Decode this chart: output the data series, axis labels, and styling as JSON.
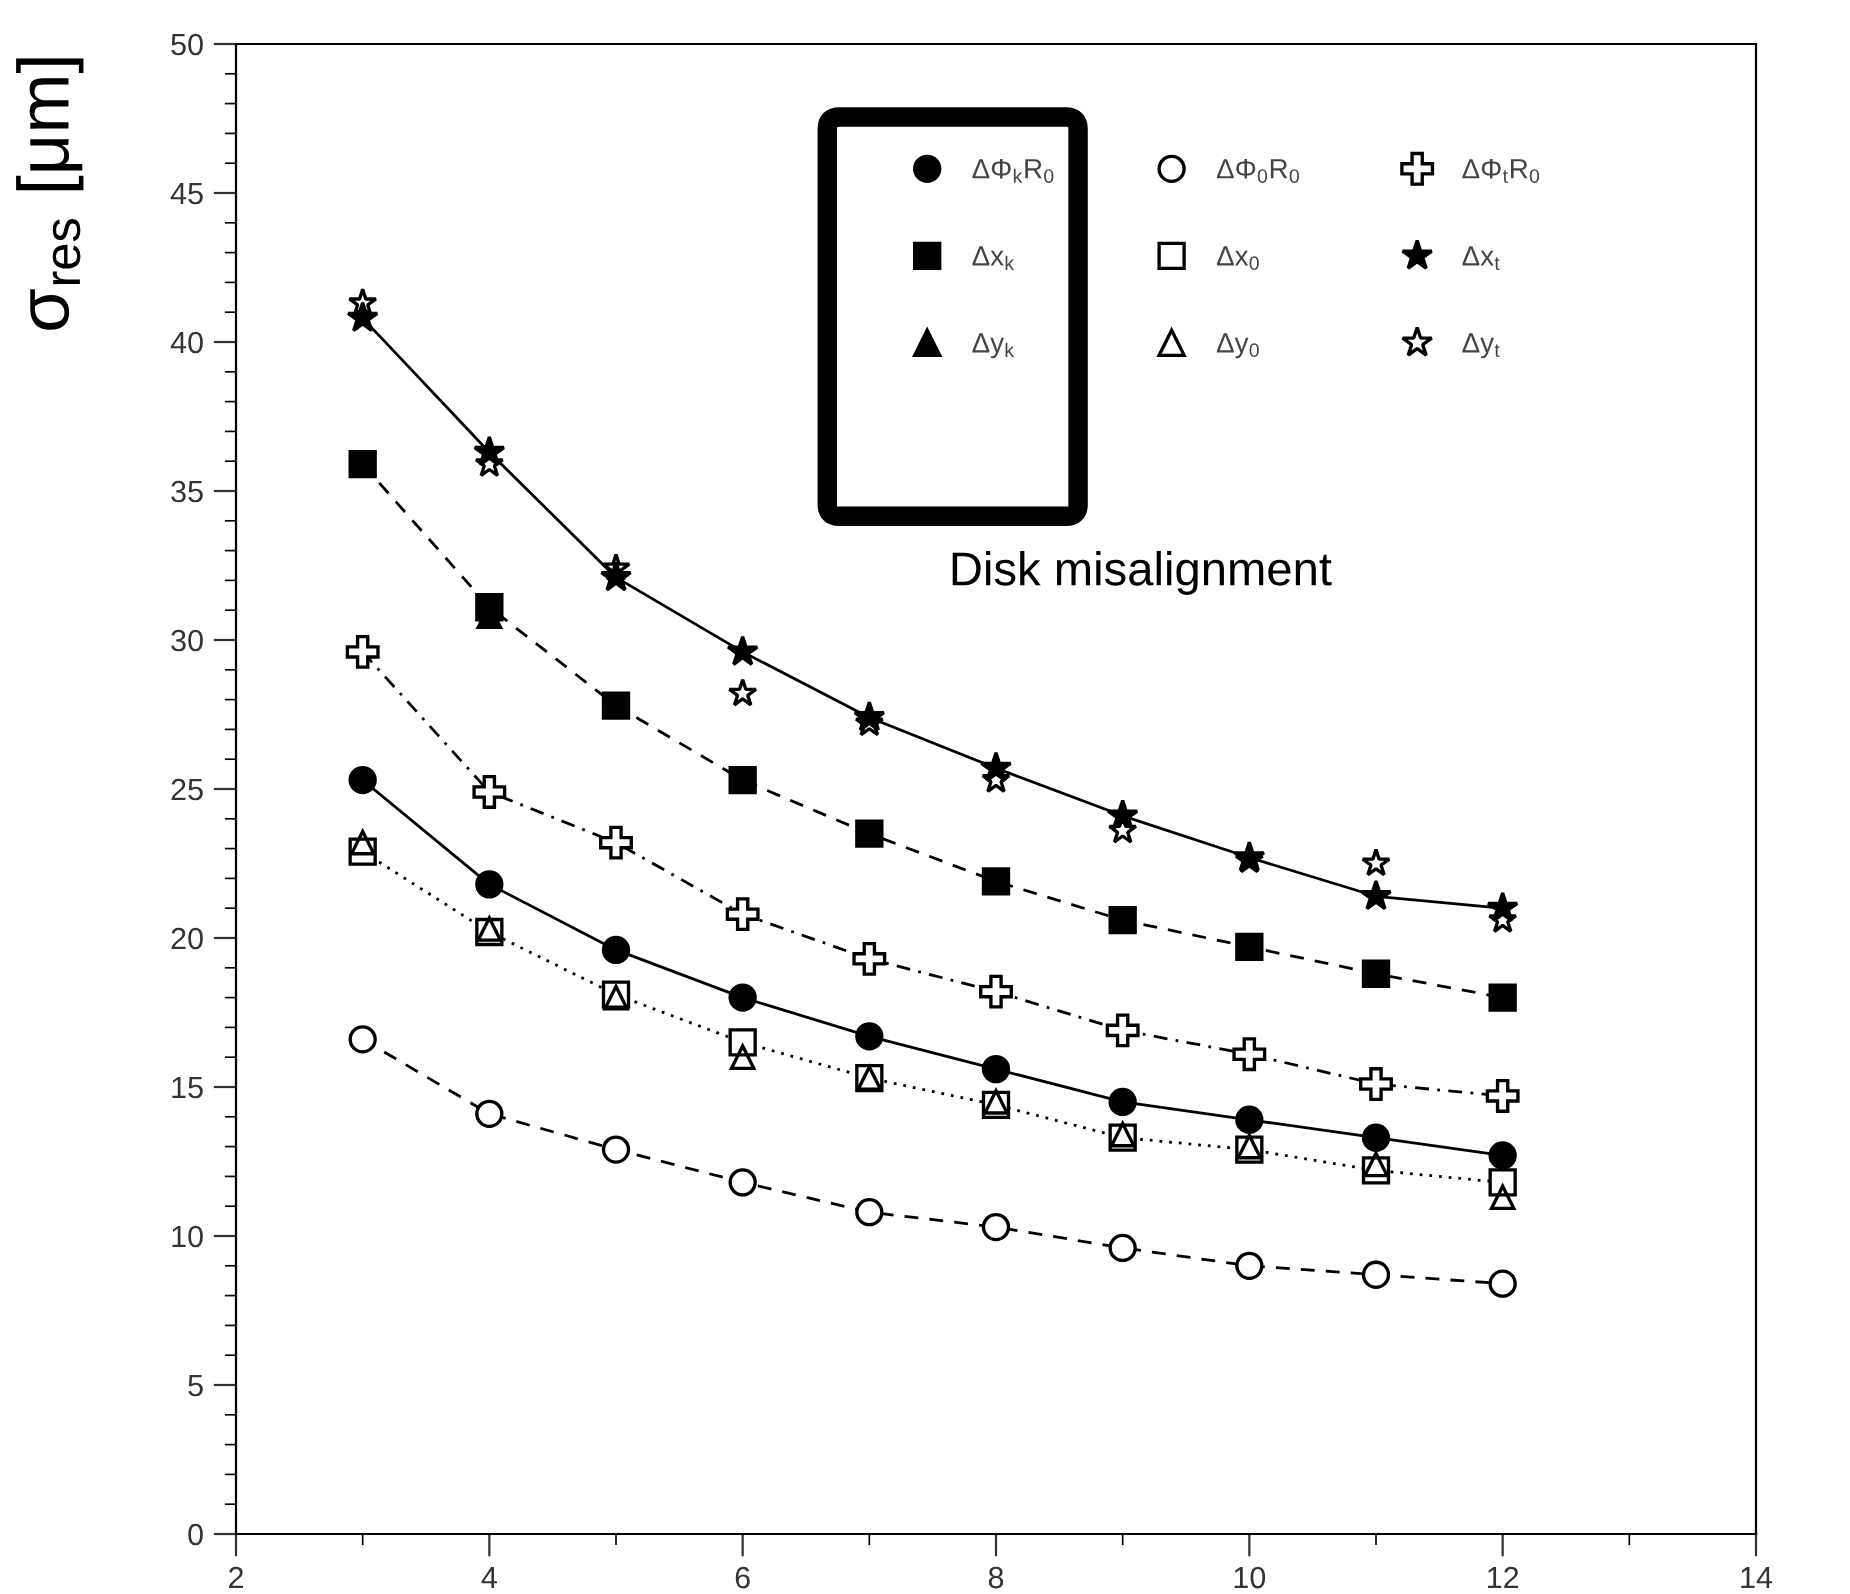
{
  "chart_data": {
    "type": "scatter",
    "ylabel": "σ$_{res}$ [μm]",
    "x": [
      3,
      4,
      5,
      6,
      7,
      8,
      9,
      10,
      11,
      12
    ],
    "xlim": [
      2,
      14
    ],
    "xticks": [
      2,
      4,
      6,
      8,
      10,
      12,
      14
    ],
    "ylim": [
      0,
      50
    ],
    "yticks": [
      0,
      5,
      10,
      15,
      20,
      25,
      30,
      35,
      40,
      45,
      50
    ],
    "grid": false,
    "legend": "top right",
    "annotations": [
      "Disk misalignment"
    ],
    "series": [
      {
        "name": "ΔΦ$_{k}$R$_{0}$",
        "type": "line",
        "color": "#000000",
        "marker": "circle",
        "line_style": "solid",
        "values": [
          25.3,
          21.8,
          19.6,
          18.0,
          16.7,
          15.6,
          14.5,
          13.9,
          13.3,
          12.7
        ]
      },
      {
        "name": "Δx$_{k}$",
        "type": "line",
        "color": "#000000",
        "marker": "square",
        "line_style": "dashed",
        "values": [
          35.9,
          31.1,
          27.8,
          25.3,
          23.5,
          21.9,
          20.6,
          19.7,
          18.8,
          18.0
        ]
      },
      {
        "name": "Δy$_{k}$",
        "color": "#000000",
        "marker": "triangle",
        "line_style": "none",
        "values": [
          null,
          30.8,
          null,
          null,
          null,
          null,
          null,
          null,
          null,
          null
        ]
      },
      {
        "name": "ΔΦ$_{0}$R$_{0}$",
        "type": "line",
        "color": "#000000",
        "marker": "circle-open",
        "line_style": "dashed",
        "values": [
          16.6,
          14.1,
          12.9,
          11.8,
          10.8,
          10.3,
          9.6,
          9.0,
          8.7,
          8.4
        ]
      },
      {
        "name": "Δx$_{0}$",
        "type": "line",
        "color": "#000000",
        "marker": "square-open",
        "line_style": "dotted",
        "values": [
          22.9,
          20.2,
          18.1,
          16.5,
          15.3,
          14.4,
          13.3,
          12.9,
          12.2,
          11.8
        ]
      },
      {
        "name": "Δy$_{0}$",
        "color": "#000000",
        "marker": "triangle-open",
        "line_style": "none",
        "values": [
          23.2,
          20.3,
          18.0,
          16.0,
          15.3,
          14.5,
          13.4,
          13.0,
          12.4,
          11.3
        ]
      },
      {
        "name": "ΔΦ$_{t}$R$_{0}$",
        "type": "line",
        "color": "#000000",
        "marker": "cross-open",
        "line_style": "dashdot",
        "values": [
          29.6,
          24.9,
          23.2,
          20.8,
          19.3,
          18.2,
          16.9,
          16.1,
          15.1,
          14.7
        ]
      },
      {
        "name": "Δx$_{t}$",
        "type": "line",
        "color": "#000000",
        "marker": "star",
        "line_style": "solid",
        "values": [
          40.8,
          36.3,
          32.1,
          29.6,
          27.4,
          25.7,
          24.1,
          22.7,
          21.4,
          21.0
        ]
      },
      {
        "name": "Δy$_{t}$",
        "color": "#000000",
        "marker": "star-open",
        "line_style": "none",
        "values": [
          41.3,
          35.9,
          32.4,
          28.2,
          27.2,
          25.3,
          23.6,
          22.6,
          22.5,
          20.6
        ]
      }
    ]
  }
}
